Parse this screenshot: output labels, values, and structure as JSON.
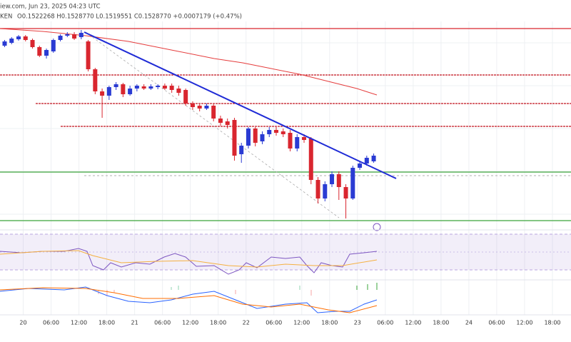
{
  "chart_data": {
    "type": "candlestick",
    "title": "iew.com, Jun 23, 2025 04:23 UTC",
    "symbol": "KEN",
    "ohlc_summary": "O0.1522268 H0.1528770 L0.1519551 C0.1528770 +0.0007179 (+0.47%)",
    "up_color": "#2a3bd3",
    "down_color": "#d9262f",
    "grid": true,
    "xlim": [
      -5,
      118
    ],
    "ylim": [
      0.148,
      0.1639
    ],
    "xticks": [
      {
        "value": 0,
        "label": "20"
      },
      {
        "value": 6,
        "label": "06:00"
      },
      {
        "value": 12,
        "label": "12:00"
      },
      {
        "value": 18,
        "label": "18:00"
      },
      {
        "value": 24,
        "label": "21"
      },
      {
        "value": 30,
        "label": "06:00"
      },
      {
        "value": 36,
        "label": "12:00"
      },
      {
        "value": 42,
        "label": "18:00"
      },
      {
        "value": 48,
        "label": "22"
      },
      {
        "value": 54,
        "label": "06:00"
      },
      {
        "value": 60,
        "label": "12:00"
      },
      {
        "value": 66,
        "label": "18:00"
      },
      {
        "value": 72,
        "label": "23"
      },
      {
        "value": 78,
        "label": "06:00"
      },
      {
        "value": 84,
        "label": "12:00"
      },
      {
        "value": 90,
        "label": "18:00"
      },
      {
        "value": 96,
        "label": "24"
      },
      {
        "value": 102,
        "label": "06:00"
      },
      {
        "value": 108,
        "label": "12:00"
      },
      {
        "value": 114,
        "label": "18:00"
      }
    ],
    "x": [
      -4,
      -2.5,
      -1,
      0.5,
      2,
      3.5,
      5,
      6.5,
      8,
      9.5,
      11,
      12.5,
      14,
      15.5,
      17,
      18.5,
      20,
      21.5,
      23,
      24.5,
      26,
      27.5,
      29,
      30.5,
      32,
      33.5,
      35,
      36.5,
      38,
      39.5,
      41,
      42.5,
      44,
      45.5,
      47,
      48.5,
      50,
      51.5,
      53,
      54.5,
      56,
      57.5,
      59,
      60.5,
      62,
      63.5,
      65,
      66.5,
      68,
      69.5,
      71,
      72.5,
      74,
      75.5
    ],
    "open": [
      0.1607,
      0.1609,
      0.16115,
      0.16135,
      0.1611,
      0.1606,
      0.16,
      0.1603,
      0.1611,
      0.1614,
      0.1615,
      0.1613,
      0.161,
      0.15905,
      0.1575,
      0.1572,
      0.1578,
      0.158,
      0.1573,
      0.1577,
      0.15785,
      0.1577,
      0.1578,
      0.1579,
      0.1579,
      0.1577,
      0.1576,
      0.15665,
      0.1565,
      0.1563,
      0.1565,
      0.1556,
      0.1554,
      0.1555,
      0.1531,
      0.1537,
      0.1549,
      0.154,
      0.1545,
      0.1548,
      0.1547,
      0.1546,
      0.1535,
      0.1543,
      0.1542,
      0.1513,
      0.15,
      0.151,
      0.1517,
      0.1508,
      0.15,
      0.15215,
      0.15245,
      0.1526
    ],
    "high": [
      0.1611,
      0.1613,
      0.16145,
      0.16145,
      0.1612,
      0.1607,
      0.1605,
      0.1612,
      0.1615,
      0.16165,
      0.16165,
      0.1618,
      0.1611,
      0.15915,
      0.1577,
      0.1579,
      0.15815,
      0.1581,
      0.1579,
      0.158,
      0.158,
      0.158,
      0.158,
      0.15805,
      0.15805,
      0.1579,
      0.1577,
      0.1568,
      0.1566,
      0.15665,
      0.1566,
      0.1558,
      0.1556,
      0.15565,
      0.1539,
      0.155,
      0.155,
      0.1547,
      0.155,
      0.155,
      0.1549,
      0.1548,
      0.1545,
      0.1545,
      0.1543,
      0.1515,
      0.1512,
      0.1519,
      0.1519,
      0.151,
      0.1523,
      0.1526,
      0.153,
      0.15315
    ],
    "low": [
      0.1606,
      0.1608,
      0.16105,
      0.161,
      0.1605,
      0.1599,
      0.1598,
      0.1602,
      0.161,
      0.1613,
      0.1611,
      0.16115,
      0.1589,
      0.1573,
      0.15565,
      0.1569,
      0.1576,
      0.1571,
      0.1572,
      0.1575,
      0.1576,
      0.1576,
      0.15765,
      0.1576,
      0.1574,
      0.1572,
      0.1565,
      0.1562,
      0.1561,
      0.1562,
      0.1554,
      0.1551,
      0.1549,
      0.15265,
      0.1525,
      0.1535,
      0.15365,
      0.1538,
      0.1543,
      0.1544,
      0.1543,
      0.1533,
      0.1533,
      0.1539,
      0.151,
      0.14965,
      0.1498,
      0.1508,
      0.1499,
      0.1486,
      0.1499,
      0.152,
      0.1523,
      0.1525
    ],
    "close": [
      0.161,
      0.1612,
      0.16135,
      0.1611,
      0.1606,
      0.16,
      0.1604,
      0.1611,
      0.1614,
      0.1615,
      0.1612,
      0.1616,
      0.15905,
      0.1575,
      0.1572,
      0.1578,
      0.158,
      0.1573,
      0.1577,
      0.1579,
      0.1577,
      0.15785,
      0.1579,
      0.1577,
      0.1576,
      0.1574,
      0.15665,
      0.1564,
      0.1563,
      0.1565,
      0.1556,
      0.1553,
      0.15515,
      0.153,
      0.1537,
      0.1549,
      0.1539,
      0.1545,
      0.1548,
      0.1546,
      0.1545,
      0.1535,
      0.1543,
      0.1541,
      0.1513,
      0.15,
      0.151,
      0.1517,
      0.1508,
      0.15,
      0.15215,
      0.15245,
      0.15285,
      0.153
    ]
  }
}
